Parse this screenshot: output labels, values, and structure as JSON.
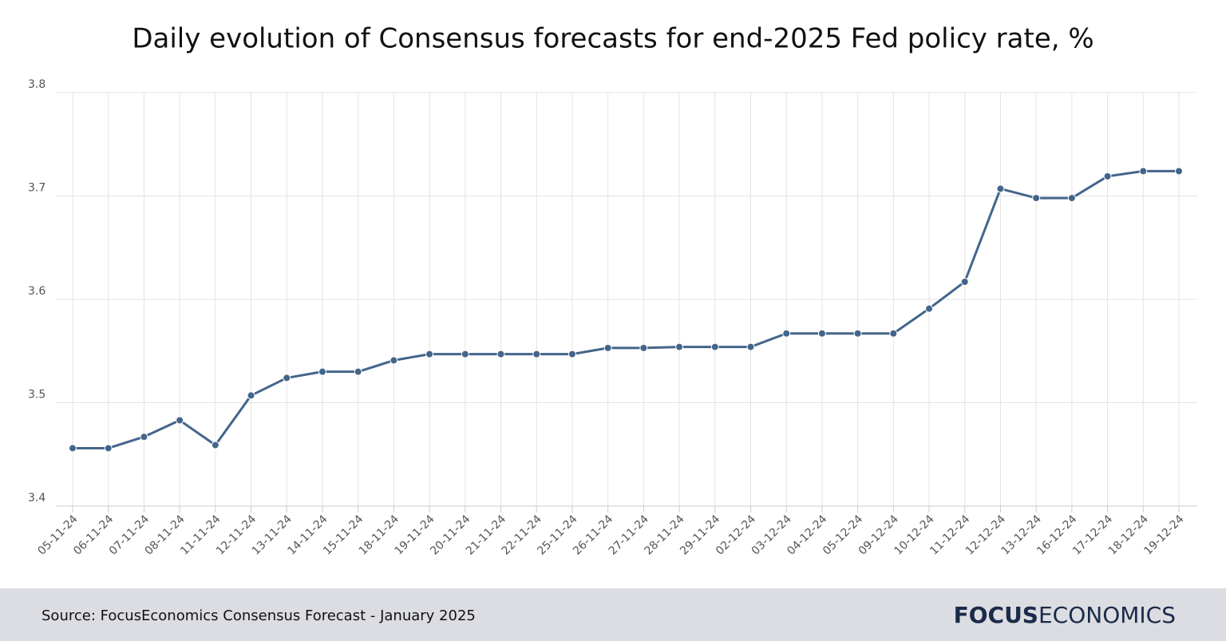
{
  "chart_data": {
    "type": "line",
    "title": "Daily evolution of Consensus forecasts for end-2025 Fed policy rate, %",
    "categories": [
      "05-11-24",
      "06-11-24",
      "07-11-24",
      "08-11-24",
      "11-11-24",
      "12-11-24",
      "13-11-24",
      "14-11-24",
      "15-11-24",
      "18-11-24",
      "19-11-24",
      "20-11-24",
      "21-11-24",
      "22-11-24",
      "25-11-24",
      "26-11-24",
      "27-11-24",
      "28-11-24",
      "29-11-24",
      "02-12-24",
      "03-12-24",
      "04-12-24",
      "05-12-24",
      "09-12-24",
      "10-12-24",
      "11-12-24",
      "12-12-24",
      "13-12-24",
      "16-12-24",
      "17-12-24",
      "18-12-24",
      "19-12-24"
    ],
    "values": [
      3.456,
      3.456,
      3.467,
      3.483,
      3.459,
      3.507,
      3.524,
      3.53,
      3.53,
      3.541,
      3.547,
      3.547,
      3.547,
      3.547,
      3.547,
      3.553,
      3.553,
      3.554,
      3.554,
      3.554,
      3.567,
      3.567,
      3.567,
      3.567,
      3.591,
      3.617,
      3.707,
      3.698,
      3.698,
      3.719,
      3.724,
      3.724
    ],
    "color": "#43658b",
    "ylim": [
      3.4,
      3.8
    ],
    "yticks": [
      3.4,
      3.5,
      3.6,
      3.7,
      3.8
    ],
    "grid": true
  },
  "footer": {
    "source": "Source: FocusEconomics Consensus Forecast - January 2025",
    "logo_bold": "FOCUS",
    "logo_light": "ECONOMICS"
  }
}
